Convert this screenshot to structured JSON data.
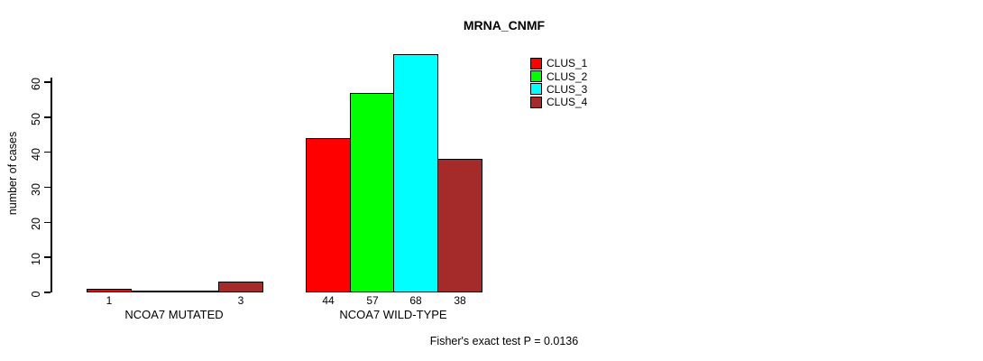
{
  "title": "MRNA_CNMF",
  "y_axis": {
    "label": "number of cases",
    "ticks": [
      0,
      10,
      20,
      30,
      40,
      50,
      60
    ]
  },
  "footer": "Fisher's exact test P = 0.0136",
  "legend": {
    "items": [
      {
        "label": "CLUS_1",
        "color": "#FF0000"
      },
      {
        "label": "CLUS_2",
        "color": "#00FF00"
      },
      {
        "label": "CLUS_3",
        "color": "#00FFFF"
      },
      {
        "label": "CLUS_4",
        "color": "#A52A2A"
      }
    ]
  },
  "chart_data": {
    "type": "bar",
    "title": "MRNA_CNMF",
    "xlabel": "",
    "ylabel": "number of cases",
    "ylim": [
      0,
      68
    ],
    "yticks": [
      0,
      10,
      20,
      30,
      40,
      50,
      60
    ],
    "grid": false,
    "legend_position": "top-right-inside",
    "categories": [
      "NCOA7 MUTATED",
      "NCOA7 WILD-TYPE"
    ],
    "series": [
      {
        "name": "CLUS_1",
        "color": "#FF0000",
        "values": [
          1,
          44
        ]
      },
      {
        "name": "CLUS_2",
        "color": "#00FF00",
        "values": [
          0,
          57
        ]
      },
      {
        "name": "CLUS_3",
        "color": "#00FFFF",
        "values": [
          0,
          68
        ]
      },
      {
        "name": "CLUS_4",
        "color": "#A52A2A",
        "values": [
          3,
          38
        ]
      }
    ],
    "bar_value_labels": [
      [
        "1",
        "",
        "",
        "3"
      ],
      [
        "44",
        "57",
        "68",
        "38"
      ]
    ],
    "annotation": "Fisher's exact test P = 0.0136"
  }
}
